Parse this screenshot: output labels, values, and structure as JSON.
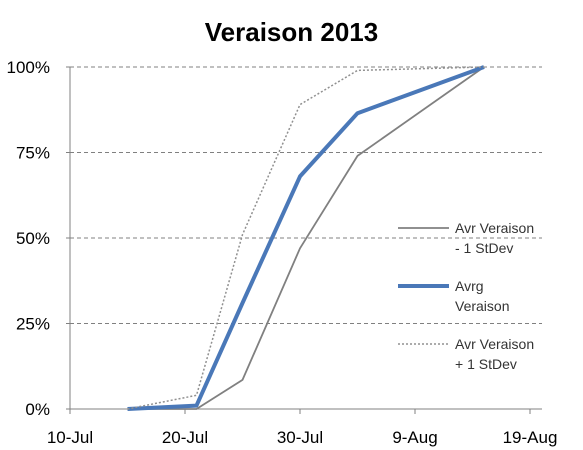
{
  "chart_data": {
    "type": "line",
    "title": "Veraison 2013",
    "xlabel": "",
    "ylabel": "",
    "x_ticks": [
      "10-Jul",
      "20-Jul",
      "30-Jul",
      "9-Aug",
      "19-Aug"
    ],
    "x_tick_days": [
      0,
      10,
      20,
      30,
      40
    ],
    "xlim_days": [
      0,
      40
    ],
    "y_ticks": [
      "0%",
      "25%",
      "50%",
      "75%",
      "100%"
    ],
    "ylim": [
      0,
      100
    ],
    "grid": "horizontal dashed",
    "legend": "right",
    "series": [
      {
        "name": "Avr Veraison - 1 StDev",
        "legend_lines": [
          "Avr Veraison",
          "- 1 StDev"
        ],
        "style": "solid-thin",
        "color": "#808080",
        "x": [
          5,
          11,
          15,
          20,
          25,
          36
        ],
        "y": [
          0,
          0,
          8.5,
          47,
          74,
          100
        ]
      },
      {
        "name": "Avrg Veraison",
        "legend_lines": [
          "Avrg",
          "Veraison"
        ],
        "style": "solid-thick",
        "color": "#4a78b8",
        "x": [
          5,
          11,
          15,
          20,
          25,
          36
        ],
        "y": [
          0,
          1,
          31,
          68,
          86.5,
          100
        ]
      },
      {
        "name": "Avr Veraison + 1 StDev",
        "legend_lines": [
          "Avr Veraison",
          "+ 1 StDev"
        ],
        "style": "dotted",
        "color": "#909090",
        "x": [
          5,
          11,
          15,
          20,
          25,
          36
        ],
        "y": [
          0,
          4,
          51,
          89,
          99,
          100
        ]
      }
    ]
  }
}
